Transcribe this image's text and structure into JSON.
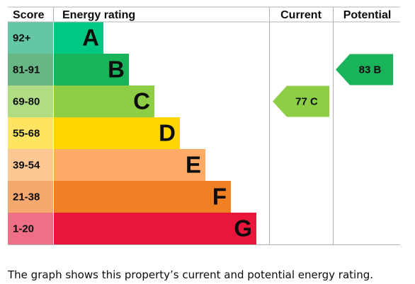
{
  "chart_data": {
    "type": "bar",
    "headers": {
      "score": "Score",
      "rating": "Energy rating",
      "current": "Current",
      "potential": "Potential"
    },
    "bands": [
      {
        "score": "92+",
        "letter": "A",
        "color": "#00c781",
        "score_bg": "#64c7a3"
      },
      {
        "score": "81-91",
        "letter": "B",
        "color": "#19b459",
        "score_bg": "#68b684"
      },
      {
        "score": "69-80",
        "letter": "C",
        "color": "#8dce46",
        "score_bg": "#b0dd83"
      },
      {
        "score": "55-68",
        "letter": "D",
        "color": "#ffd500",
        "score_bg": "#ffe462"
      },
      {
        "score": "39-54",
        "letter": "E",
        "color": "#fcaa65",
        "score_bg": "#fdc793"
      },
      {
        "score": "21-38",
        "letter": "F",
        "color": "#ef8023",
        "score_bg": "#f5a96e"
      },
      {
        "score": "1-20",
        "letter": "G",
        "color": "#e9153b",
        "score_bg": "#ef6f86"
      }
    ],
    "current": {
      "value": 77,
      "letter": "C",
      "band_index": 2,
      "color": "#8dce46"
    },
    "potential": {
      "value": 83,
      "letter": "B",
      "band_index": 1,
      "color": "#19b459"
    }
  },
  "caption": "The graph shows this property’s current and potential energy rating."
}
